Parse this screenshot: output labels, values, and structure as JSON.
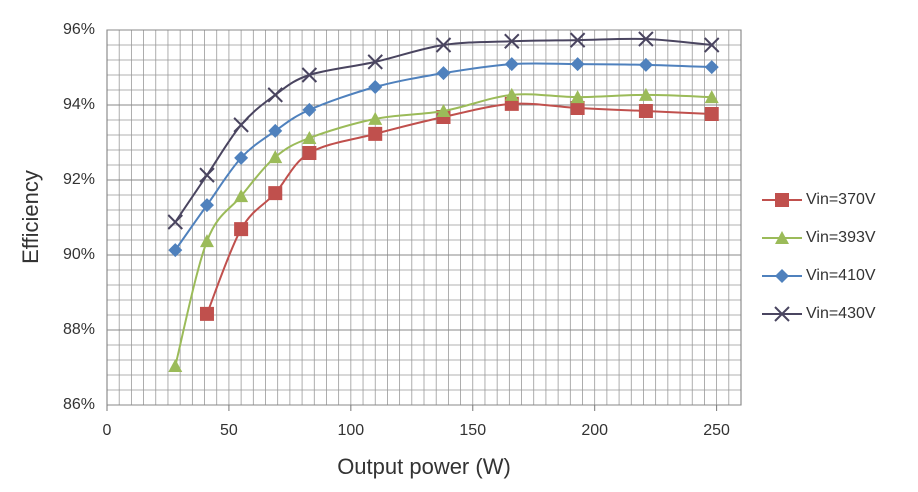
{
  "chart_data": {
    "type": "line",
    "x_label": "Output power (W)",
    "y_label": "Efficiency",
    "xlim": [
      0,
      260
    ],
    "ylim": [
      86,
      96
    ],
    "xticks": [
      0,
      50,
      100,
      150,
      200,
      250
    ],
    "yticks": [
      {
        "value": 86,
        "label": "86%"
      },
      {
        "value": 88,
        "label": "88%"
      },
      {
        "value": 90,
        "label": "90%"
      },
      {
        "value": 92,
        "label": "92%"
      },
      {
        "value": 94,
        "label": "94%"
      },
      {
        "value": 96,
        "label": "96%"
      }
    ],
    "grid": true,
    "minor_grid": {
      "x": 5,
      "y": 0.4
    },
    "legend": "right",
    "series": [
      {
        "name": "Vin=370V",
        "color": "#c0504d",
        "marker": "square",
        "x": [
          41,
          55,
          69,
          83,
          110,
          138,
          166,
          193,
          221,
          248
        ],
        "values": [
          88.43,
          90.69,
          91.65,
          92.72,
          93.23,
          93.68,
          94.03,
          93.92,
          93.84,
          93.76
        ]
      },
      {
        "name": "Vin=393V",
        "color": "#9bbb59",
        "marker": "triangle",
        "x": [
          28,
          41,
          55,
          69,
          83,
          110,
          138,
          166,
          193,
          221,
          248
        ],
        "values": [
          87.04,
          90.37,
          91.57,
          92.61,
          93.12,
          93.63,
          93.84,
          94.27,
          94.21,
          94.27,
          94.21
        ]
      },
      {
        "name": "Vin=410V",
        "color": "#4f81bd",
        "marker": "diamond",
        "x": [
          28,
          41,
          55,
          69,
          83,
          110,
          138,
          166,
          193,
          221,
          248
        ],
        "values": [
          90.13,
          91.33,
          92.59,
          93.31,
          93.87,
          94.48,
          94.85,
          95.09,
          95.09,
          95.07,
          95.01
        ]
      },
      {
        "name": "Vin=430V",
        "color": "#4a4560",
        "marker": "x",
        "x": [
          28,
          41,
          55,
          69,
          83,
          110,
          138,
          166,
          193,
          221,
          248
        ],
        "values": [
          90.88,
          92.13,
          93.47,
          94.27,
          94.8,
          95.15,
          95.6,
          95.7,
          95.73,
          95.76,
          95.6
        ]
      }
    ]
  }
}
